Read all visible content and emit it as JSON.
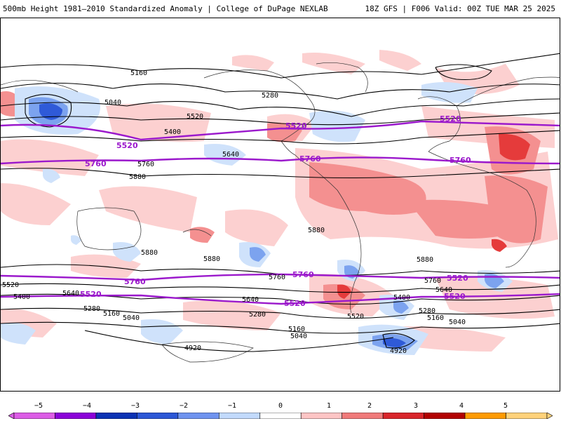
{
  "header": {
    "title_left": "500mb Height 1981–2010 Standardized Anomaly | College of DuPage NEXLAB",
    "title_right": "18Z GFS | F006 Valid: 00Z TUE MAR 25 2025"
  },
  "contour_labels": {
    "black": [
      "5160",
      "5040",
      "5280",
      "5520",
      "5400",
      "5640",
      "5880",
      "5760",
      "4920",
      "5160",
      "5040",
      "5280",
      "5400",
      "5520",
      "5640",
      "5760",
      "5880",
      "5400",
      "5520",
      "5280",
      "5160",
      "5040",
      "4920",
      "5640",
      "5280",
      "5160",
      "5040",
      "5640",
      "5760",
      "5880",
      "5880",
      "5880"
    ],
    "purple": [
      "5520",
      "5760",
      "5520",
      "5760",
      "5520",
      "5760",
      "5760",
      "5520",
      "5520",
      "5760",
      "5520",
      "5520"
    ]
  },
  "colorbar": {
    "labels": [
      "−5",
      "−4",
      "−3",
      "−2",
      "−1",
      "0",
      "1",
      "2",
      "3",
      "4",
      "5"
    ],
    "colors": [
      "#dc5ce6",
      "#8b00d9",
      "#0a32b4",
      "#2b56d6",
      "#6e93ef",
      "#c2dafc",
      "#ffffff",
      "#fdc5c5",
      "#f07a7a",
      "#d9242a",
      "#b20000",
      "#ff9b00",
      "#ffd27a"
    ]
  },
  "palette": {
    "purple_contour": "#9b19cc",
    "anom_pos_light": "#fcd0d0",
    "anom_pos_mid": "#f49090",
    "anom_pos_strong": "#e53b3b",
    "anom_neg_light": "#cfe2fb",
    "anom_neg_mid": "#7ca3ef",
    "anom_neg_strong": "#2f5ad8"
  }
}
